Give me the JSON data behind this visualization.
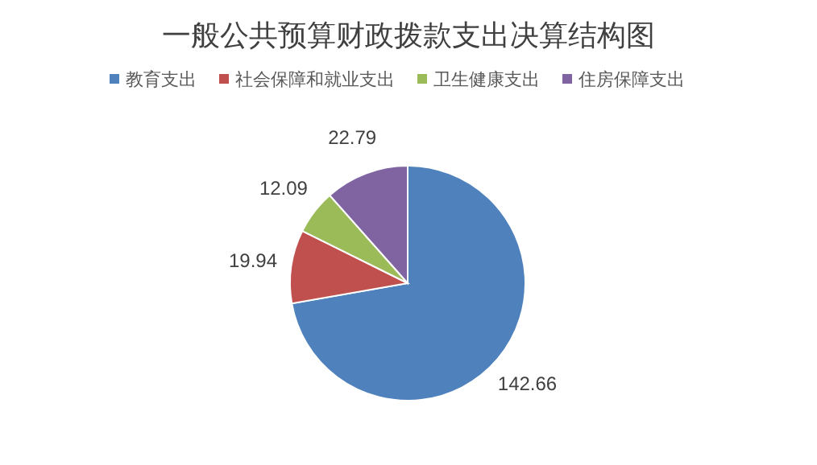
{
  "chart_data": {
    "type": "pie",
    "title": "一般公共预算财政拨款支出决算结构图",
    "categories": [
      "教育支出",
      "社会保障和就业支出",
      "卫生健康支出",
      "住房保障支出"
    ],
    "values": [
      142.66,
      19.94,
      12.09,
      22.79
    ],
    "colors": [
      "#4f81bd",
      "#c0504d",
      "#9bbb59",
      "#8064a2"
    ],
    "data_labels": true,
    "legend": "top"
  }
}
